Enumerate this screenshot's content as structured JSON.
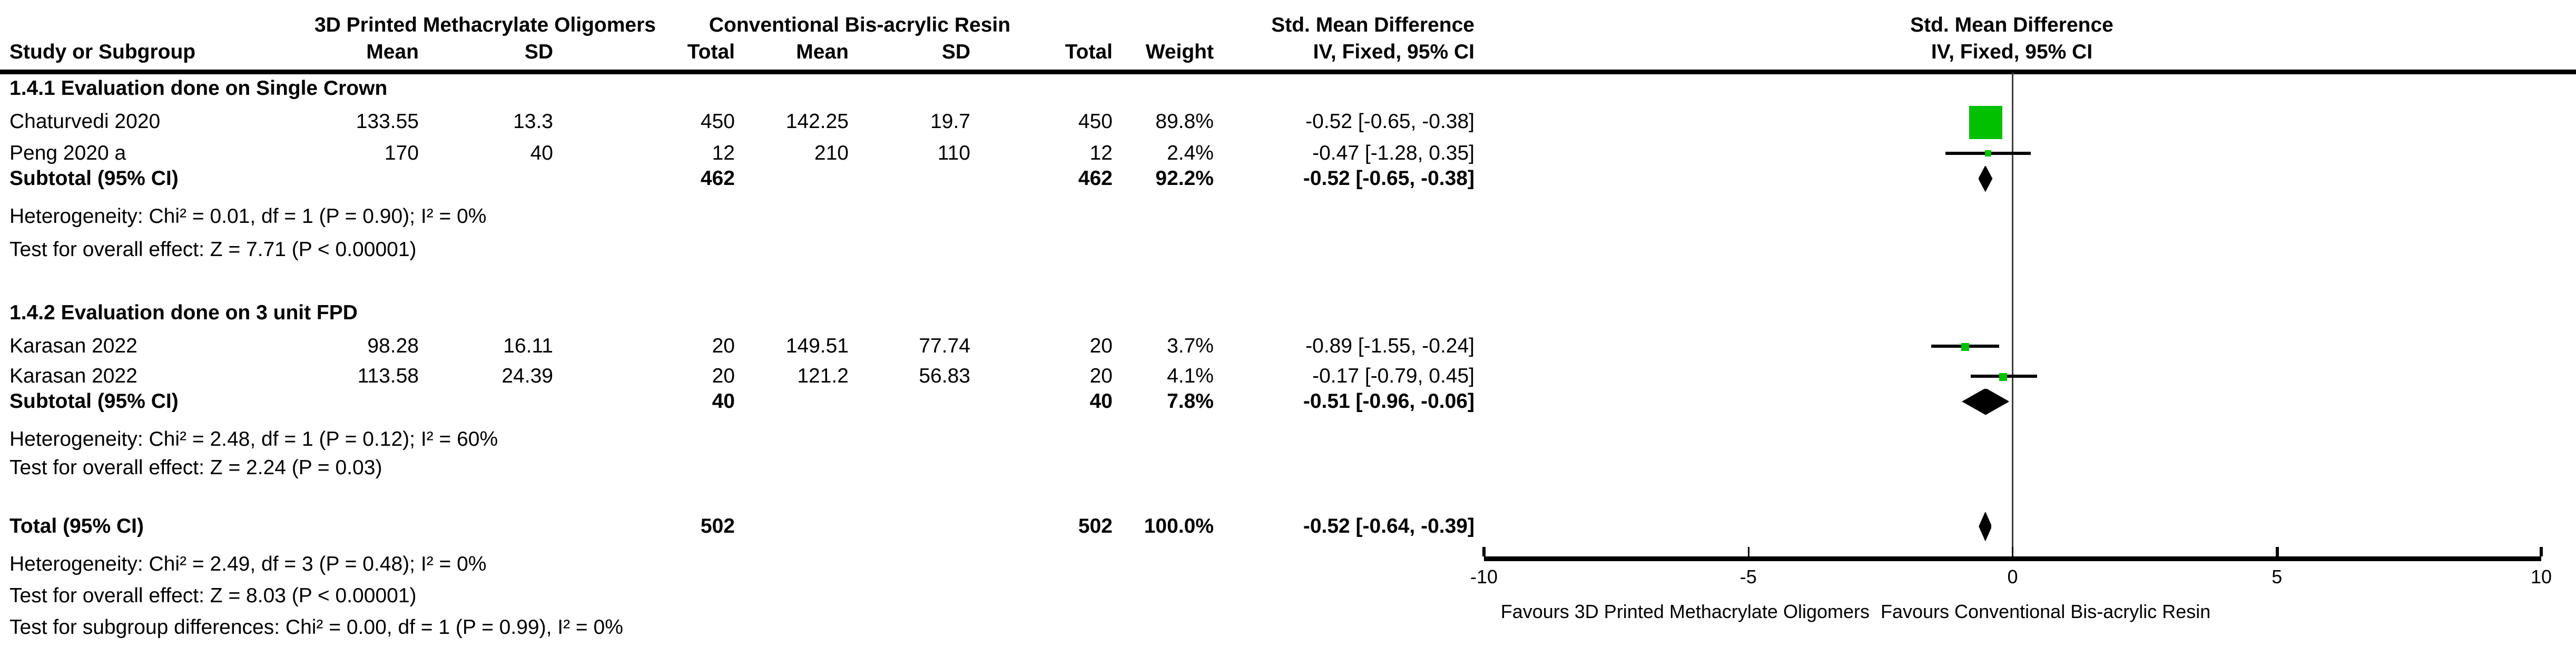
{
  "header": {
    "group1": "3D Printed Methacrylate Oligomers",
    "group2": "Conventional Bis-acrylic Resin",
    "smd": "Std. Mean Difference",
    "study_col": "Study or Subgroup",
    "mean_col": "Mean",
    "sd_col": "SD",
    "total_col": "Total",
    "weight_col": "Weight",
    "method_col": "IV, Fixed, 95% CI"
  },
  "sections": [
    {
      "label": "1.4.1 Evaluation done on Single Crown",
      "rows": [
        {
          "study": "Chaturvedi 2020",
          "mean1": "133.55",
          "sd1": "13.3",
          "total1": "450",
          "mean2": "142.25",
          "sd2": "19.7",
          "total2": "450",
          "weight": "89.8%",
          "ci": "-0.52 [-0.65, -0.38]"
        },
        {
          "study": "Peng 2020 a",
          "mean1": "170",
          "sd1": "40",
          "total1": "12",
          "mean2": "210",
          "sd2": "110",
          "total2": "12",
          "weight": "2.4%",
          "ci": "-0.47 [-1.28, 0.35]"
        }
      ],
      "subtotal": {
        "label": "Subtotal (95% CI)",
        "total1": "462",
        "total2": "462",
        "weight": "92.2%",
        "ci": "-0.52 [-0.65, -0.38]"
      },
      "heterogeneity": "Heterogeneity: Chi² = 0.01, df = 1 (P = 0.90); I² = 0%",
      "overall_effect": "Test for overall effect: Z = 7.71 (P < 0.00001)"
    },
    {
      "label": "1.4.2 Evaluation done on 3 unit FPD",
      "rows": [
        {
          "study": "Karasan 2022",
          "mean1": "98.28",
          "sd1": "16.11",
          "total1": "20",
          "mean2": "149.51",
          "sd2": "77.74",
          "total2": "20",
          "weight": "3.7%",
          "ci": "-0.89 [-1.55, -0.24]"
        },
        {
          "study": "Karasan 2022",
          "mean1": "113.58",
          "sd1": "24.39",
          "total1": "20",
          "mean2": "121.2",
          "sd2": "56.83",
          "total2": "20",
          "weight": "4.1%",
          "ci": "-0.17 [-0.79, 0.45]"
        }
      ],
      "subtotal": {
        "label": "Subtotal (95% CI)",
        "total1": "40",
        "total2": "40",
        "weight": "7.8%",
        "ci": "-0.51 [-0.96, -0.06]"
      },
      "heterogeneity": "Heterogeneity: Chi² = 2.48, df = 1 (P = 0.12); I² = 60%",
      "overall_effect": "Test for overall effect: Z = 2.24 (P = 0.03)"
    }
  ],
  "total": {
    "label": "Total (95% CI)",
    "total1": "502",
    "total2": "502",
    "weight": "100.0%",
    "ci": "-0.52 [-0.64, -0.39]",
    "heterogeneity": "Heterogeneity: Chi² = 2.49, df = 3 (P = 0.48); I² = 0%",
    "overall_effect": "Test for overall effect: Z = 8.03 (P < 0.00001)",
    "subgroup_diff": "Test for subgroup differences: Chi² = 0.00, df = 1 (P = 0.99), I² = 0%"
  },
  "colors": {
    "marker_green": "#00C000",
    "diamond_black": "#000000",
    "line_black": "#000000"
  },
  "chart_data": {
    "type": "scatter",
    "variant": "forest-plot",
    "title": "Std. Mean Difference",
    "method": "IV, Fixed, 95% CI",
    "axis": {
      "min": -10,
      "max": 10,
      "ticks": [
        "-10",
        "-5",
        "0",
        "5",
        "10"
      ],
      "tick_values": [
        -10,
        -5,
        0,
        5,
        10
      ],
      "left_label": "Favours 3D Printed Methacrylate Oligomers",
      "right_label": "Favours Conventional Bis-acrylic Resin"
    },
    "studies": [
      {
        "key": "s0r0",
        "name": "Chaturvedi 2020",
        "est": -0.52,
        "lo": -0.65,
        "hi": -0.38,
        "weight_pct": 89.8,
        "marker_size": 21
      },
      {
        "key": "s0r1",
        "name": "Peng 2020 a",
        "est": -0.47,
        "lo": -1.28,
        "hi": 0.35,
        "weight_pct": 2.4,
        "marker_size": 4
      },
      {
        "key": "s1r0",
        "name": "Karasan 2022",
        "est": -0.89,
        "lo": -1.55,
        "hi": -0.24,
        "weight_pct": 3.7,
        "marker_size": 5
      },
      {
        "key": "s1r1",
        "name": "Karasan 2022",
        "est": -0.17,
        "lo": -0.79,
        "hi": 0.45,
        "weight_pct": 4.1,
        "marker_size": 5
      }
    ],
    "pooled": [
      {
        "key": "s0sub",
        "name": "Subtotal 1.4.1",
        "est": -0.52,
        "lo": -0.65,
        "hi": -0.38
      },
      {
        "key": "s1sub",
        "name": "Subtotal 1.4.2",
        "est": -0.51,
        "lo": -0.96,
        "hi": -0.06
      },
      {
        "key": "total",
        "name": "Total",
        "est": -0.52,
        "lo": -0.64,
        "hi": -0.39
      }
    ]
  }
}
